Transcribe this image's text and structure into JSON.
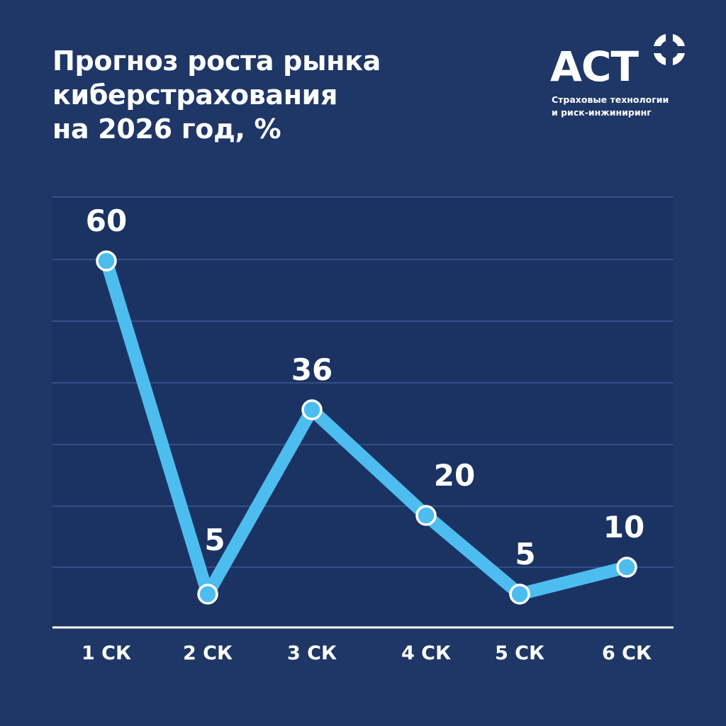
{
  "header": {
    "title_lines": [
      "Прогноз роста рынка",
      "киберстрахования",
      "на 2026 год, %"
    ]
  },
  "logo": {
    "wordmark": "АСТ",
    "tagline_lines": [
      "Страховые технологии",
      "и риск-инжиниринг"
    ]
  },
  "colors": {
    "background": "#1e3767",
    "plot_background": "#1b3363",
    "line": "#4dbdf0",
    "point_fill": "#4dbdf0",
    "point_stroke": "#ffffff",
    "text": "#ffffff",
    "grid": "#3a5a92"
  },
  "chart_data": {
    "type": "line",
    "title": "Прогноз роста рынка киберстрахования на 2026 год, %",
    "categories": [
      "1 СК",
      "2 СК",
      "3 СК",
      "4 СК",
      "5 СК",
      "6 СК"
    ],
    "series": [
      {
        "values": [
          60,
          5,
          36,
          20,
          5,
          10
        ],
        "labels": [
          "60",
          "5",
          "36",
          "20",
          "5",
          "10"
        ]
      }
    ],
    "xlabel": "",
    "ylabel": "",
    "grid": true,
    "legend": "none"
  }
}
